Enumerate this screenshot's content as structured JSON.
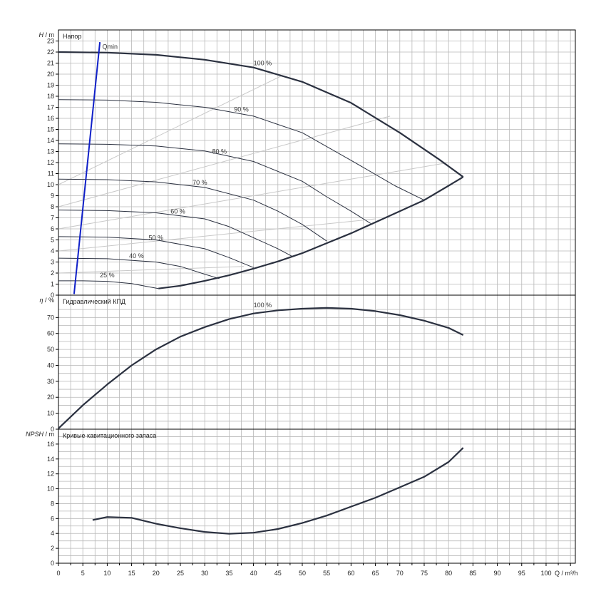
{
  "colors": {
    "grid": "#b8b8b8",
    "frame": "#000000",
    "curve": "#2b3140",
    "thin_curve": "#2b3140",
    "efficiency_line": "#c8c8c8",
    "qmin_line": "#1020c8",
    "text": "#222222"
  },
  "chart_data": [
    {
      "id": "head",
      "type": "line",
      "title": "Напор",
      "ylabel_symbol": "H",
      "ylabel_unit": "/ m",
      "xlim": [
        0,
        106
      ],
      "ylim": [
        0,
        24
      ],
      "y_ticks": [
        0,
        1,
        2,
        3,
        4,
        5,
        6,
        7,
        8,
        9,
        10,
        11,
        12,
        13,
        14,
        15,
        16,
        17,
        18,
        19,
        20,
        21,
        22,
        23
      ],
      "y_tick_labels": [
        "0",
        "1",
        "2",
        "3",
        "4",
        "5",
        "6",
        "7",
        "8",
        "9",
        "10",
        "11",
        "12",
        "13",
        "14",
        "15",
        "16",
        "17",
        "18",
        "19",
        "20",
        "21",
        "22",
        "23"
      ],
      "series": [
        {
          "name": "100 %",
          "label_at": [
            40.0,
            20.8
          ],
          "x": [
            0,
            10,
            20,
            30,
            40,
            50,
            60,
            70,
            78,
            83
          ],
          "y": [
            22.0,
            21.95,
            21.75,
            21.3,
            20.6,
            19.3,
            17.4,
            14.7,
            12.3,
            10.7
          ]
        },
        {
          "name": "90 %",
          "label_at": [
            36.0,
            16.6
          ],
          "x": [
            0,
            10,
            20,
            30,
            40,
            50,
            60,
            69,
            75
          ],
          "y": [
            17.7,
            17.65,
            17.45,
            17.0,
            16.2,
            14.7,
            12.2,
            9.9,
            8.6
          ]
        },
        {
          "name": "80 %",
          "label_at": [
            31.5,
            12.8
          ],
          "x": [
            0,
            10,
            20,
            30,
            40,
            50,
            55,
            60,
            64
          ],
          "y": [
            13.7,
            13.65,
            13.5,
            13.05,
            12.1,
            10.3,
            8.9,
            7.6,
            6.5
          ]
        },
        {
          "name": "70 %",
          "label_at": [
            27.5,
            10.0
          ],
          "x": [
            0,
            10,
            20,
            30,
            40,
            45,
            50,
            55
          ],
          "y": [
            10.5,
            10.45,
            10.25,
            9.75,
            8.6,
            7.6,
            6.4,
            4.9
          ]
        },
        {
          "name": "60 %",
          "label_at": [
            23.0,
            7.4
          ],
          "x": [
            0,
            10,
            20,
            30,
            35,
            40,
            45,
            48
          ],
          "y": [
            7.7,
            7.65,
            7.45,
            6.9,
            6.2,
            5.2,
            4.2,
            3.5
          ]
        },
        {
          "name": "50 %",
          "label_at": [
            18.5,
            5.0
          ],
          "x": [
            0,
            10,
            20,
            30,
            35,
            40
          ],
          "y": [
            5.3,
            5.25,
            5.0,
            4.2,
            3.4,
            2.5
          ]
        },
        {
          "name": "40 %",
          "label_at": [
            14.5,
            3.35
          ],
          "x": [
            0,
            10,
            20,
            25,
            30,
            33
          ],
          "y": [
            3.35,
            3.3,
            3.0,
            2.6,
            1.9,
            1.5
          ]
        },
        {
          "name": "25 %",
          "label_at": [
            8.5,
            1.6
          ],
          "x": [
            0,
            5,
            10,
            15,
            18,
            20.5
          ],
          "y": [
            1.3,
            1.3,
            1.25,
            1.05,
            0.8,
            0.6
          ]
        },
        {
          "name": "min-boundary",
          "x": [
            20.5,
            25,
            30,
            35,
            40,
            45,
            50,
            55,
            60,
            65,
            70,
            75,
            80,
            83
          ],
          "y": [
            0.6,
            0.85,
            1.3,
            1.8,
            2.4,
            3.05,
            3.8,
            4.7,
            5.6,
            6.6,
            7.6,
            8.6,
            9.9,
            10.7
          ]
        },
        {
          "name": "Qmin",
          "label_at": [
            9.0,
            22.3
          ],
          "label": "Qmin",
          "x": [
            3.2,
            8.5
          ],
          "y": [
            0.1,
            22.9
          ]
        }
      ],
      "iso_efficiency_lines": [
        {
          "x": [
            0,
            46
          ],
          "y": [
            10.0,
            19.9
          ]
        },
        {
          "x": [
            0,
            68
          ],
          "y": [
            8.0,
            16.2
          ]
        },
        {
          "x": [
            0,
            80
          ],
          "y": [
            6.0,
            12.0
          ]
        },
        {
          "x": [
            0,
            65
          ],
          "y": [
            4.0,
            6.9
          ]
        },
        {
          "x": [
            0,
            38
          ],
          "y": [
            2.0,
            2.6
          ]
        }
      ]
    },
    {
      "id": "efficiency",
      "type": "line",
      "title": "Гидравлический КПД",
      "ylabel_symbol": "η",
      "ylabel_unit": "/ %",
      "xlim": [
        0,
        106
      ],
      "ylim": [
        0,
        84
      ],
      "y_ticks": [
        0,
        10,
        20,
        30,
        40,
        50,
        60,
        70
      ],
      "y_tick_labels": [
        "0",
        "10",
        "20",
        "30",
        "40",
        "50",
        "60",
        "70"
      ],
      "series": [
        {
          "name": "100 %",
          "label_at": [
            40.0,
            76.5
          ],
          "x": [
            0,
            5,
            10,
            15,
            20,
            25,
            30,
            35,
            40,
            45,
            50,
            55,
            60,
            65,
            70,
            75,
            80,
            83
          ],
          "y": [
            0.5,
            15,
            28,
            40,
            50,
            58,
            64,
            69,
            72.5,
            74.5,
            75.5,
            76,
            75.5,
            74,
            71.5,
            68,
            63.5,
            59
          ]
        }
      ]
    },
    {
      "id": "npsh",
      "type": "line",
      "title": "Кривые кавитационного запаса",
      "ylabel_symbol": "NPSH",
      "ylabel_unit": "/ m",
      "xlabel": "Q / m³/h",
      "xlim": [
        0,
        106
      ],
      "ylim": [
        0,
        18
      ],
      "x_ticks": [
        0,
        5,
        10,
        15,
        20,
        25,
        30,
        35,
        40,
        45,
        50,
        55,
        60,
        65,
        70,
        75,
        80,
        85,
        90,
        95,
        100
      ],
      "x_tick_labels": [
        "0",
        "5",
        "10",
        "15",
        "20",
        "25",
        "30",
        "35",
        "40",
        "45",
        "50",
        "55",
        "60",
        "65",
        "70",
        "75",
        "80",
        "85",
        "90",
        "95",
        "100"
      ],
      "y_ticks": [
        0,
        2,
        4,
        6,
        8,
        10,
        12,
        14,
        16
      ],
      "y_tick_labels": [
        "0",
        "2",
        "4",
        "6",
        "8",
        "10",
        "12",
        "14",
        "16"
      ],
      "series": [
        {
          "name": "NPSH",
          "x": [
            7,
            10,
            15,
            20,
            25,
            30,
            35,
            40,
            45,
            50,
            55,
            60,
            65,
            70,
            75,
            80,
            83
          ],
          "y": [
            5.8,
            6.2,
            6.1,
            5.3,
            4.7,
            4.2,
            3.95,
            4.1,
            4.6,
            5.4,
            6.4,
            7.6,
            8.8,
            10.2,
            11.6,
            13.6,
            15.5
          ]
        }
      ]
    }
  ]
}
